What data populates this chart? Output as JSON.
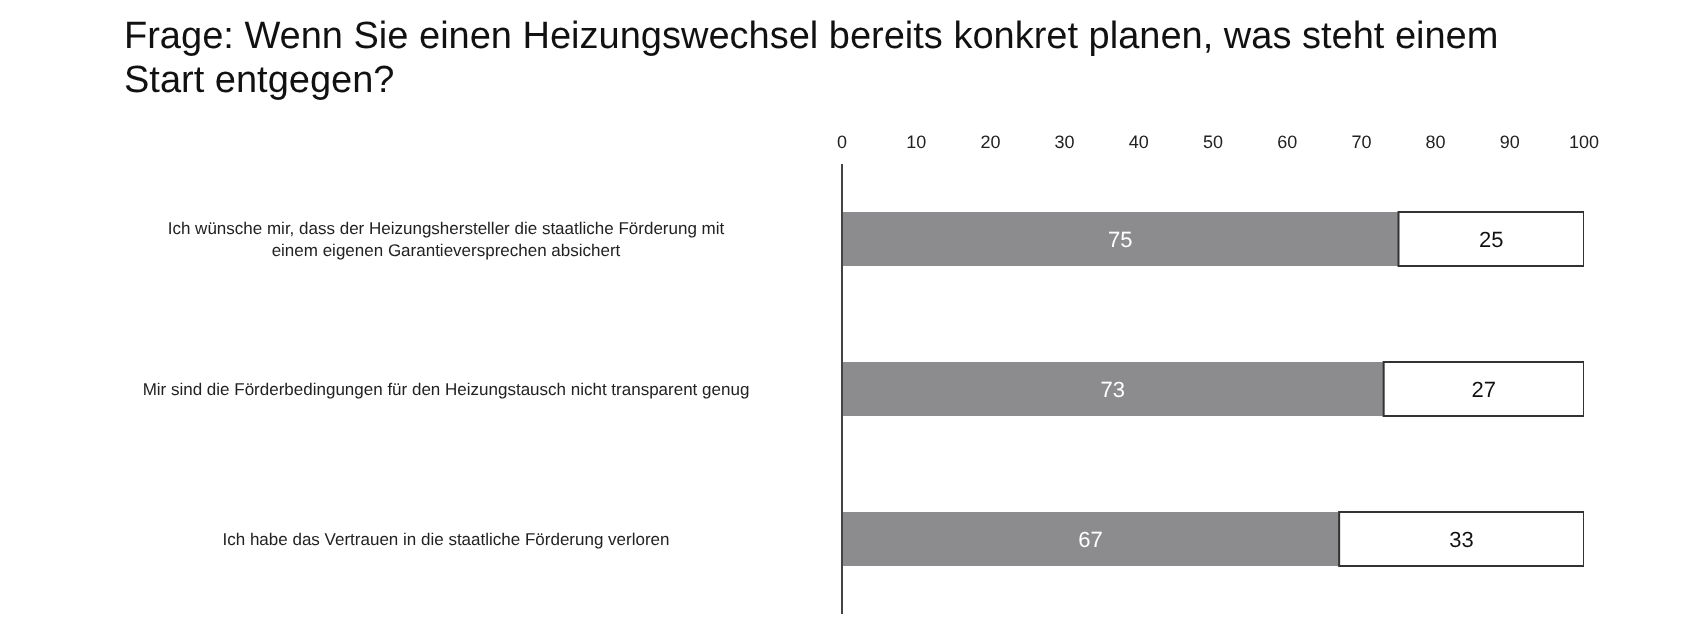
{
  "chart_data": {
    "type": "bar",
    "orientation": "horizontal",
    "stacked": true,
    "title": "Frage: Wenn Sie einen Heizungswechsel bereits konkret planen, was steht einem Start entgegen?",
    "categories": [
      "Ich wünsche mir, dass der Heizungshersteller die staatliche Förderung mit einem eigenen Garantieversprechen absichert",
      "Mir sind die Förderbedingungen für den Heizungstausch nicht transparent genug",
      "Ich habe das Vertrauen in die staatliche Förderung verloren"
    ],
    "series": [
      {
        "color": "#8c8c8e",
        "values": [
          75,
          73,
          67
        ]
      },
      {
        "color": "#ffffff",
        "values": [
          25,
          27,
          33
        ]
      }
    ],
    "xlim": [
      0,
      100
    ],
    "xticks": [
      0,
      10,
      20,
      30,
      40,
      50,
      60,
      70,
      80,
      90,
      100
    ],
    "data_labels": true,
    "grid": false,
    "legend": false
  }
}
